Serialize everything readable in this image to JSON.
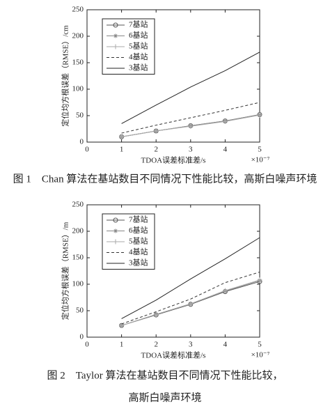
{
  "chart_data": [
    {
      "type": "line",
      "ylabel": "定位均方根误差（RMSE）/cm",
      "xlabel": "TDOA误差标准差/s",
      "x_multiplier": "×10⁻⁷",
      "caption": [
        "图 1　Chan 算法在基站数目不同情况下性能比较，高斯白噪声环境"
      ],
      "x": [
        1,
        2,
        3,
        4,
        5
      ],
      "xlim": [
        0,
        5
      ],
      "xticks": [
        0,
        1,
        2,
        3,
        4,
        5
      ],
      "ylim": [
        0,
        250
      ],
      "yticks": [
        0,
        50,
        100,
        150,
        200,
        250
      ],
      "grid": false,
      "legend": "upper left",
      "series": [
        {
          "name": "7基站",
          "color": "#555555",
          "marker": "circle",
          "dash": "solid",
          "values": [
            10,
            21,
            31,
            40,
            52
          ]
        },
        {
          "name": "6基站",
          "color": "#888888",
          "marker": "star",
          "dash": "solid",
          "values": [
            10,
            21,
            31,
            40,
            52
          ]
        },
        {
          "name": "5基站",
          "color": "#aaaaaa",
          "marker": "plus",
          "dash": "solid",
          "values": [
            10,
            21,
            30,
            39,
            51
          ]
        },
        {
          "name": "4基站",
          "color": "#333333",
          "marker": "none",
          "dash": "dashed",
          "values": [
            17,
            32,
            46,
            60,
            75
          ]
        },
        {
          "name": "3基站",
          "color": "#222222",
          "marker": "none",
          "dash": "solid",
          "values": [
            35,
            70,
            104,
            135,
            170
          ]
        }
      ]
    },
    {
      "type": "line",
      "ylabel": "定位均方根误差（RMSE）/m",
      "xlabel": "TDOA误差标准差/s",
      "x_multiplier": "×10⁻⁷",
      "caption": [
        "图 2　Taylor 算法在基站数目不同情况下性能比较，",
        "高斯白噪声环境"
      ],
      "x": [
        1,
        2,
        3,
        4,
        5
      ],
      "xlim": [
        0,
        5
      ],
      "xticks": [
        0,
        1,
        2,
        3,
        4,
        5
      ],
      "ylim": [
        0,
        250
      ],
      "yticks": [
        0,
        50,
        100,
        150,
        200,
        250
      ],
      "grid": false,
      "legend": "upper left",
      "series": [
        {
          "name": "7基站",
          "color": "#555555",
          "marker": "circle",
          "dash": "solid",
          "values": [
            22,
            42,
            62,
            86,
            105
          ]
        },
        {
          "name": "6基站",
          "color": "#888888",
          "marker": "star",
          "dash": "solid",
          "values": [
            22,
            43,
            63,
            87,
            107
          ]
        },
        {
          "name": "5基站",
          "color": "#aaaaaa",
          "marker": "plus",
          "dash": "solid",
          "values": [
            22,
            43,
            63,
            88,
            108
          ]
        },
        {
          "name": "4基站",
          "color": "#333333",
          "marker": "none",
          "dash": "dashed",
          "values": [
            25,
            48,
            72,
            103,
            123
          ]
        },
        {
          "name": "3基站",
          "color": "#222222",
          "marker": "none",
          "dash": "solid",
          "values": [
            35,
            70,
            110,
            148,
            188
          ]
        }
      ]
    }
  ]
}
